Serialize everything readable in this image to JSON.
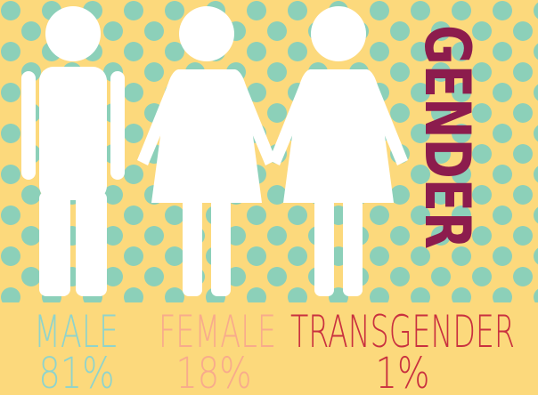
{
  "chart_data": {
    "type": "pictogram",
    "title": "GENDER",
    "categories": [
      "MALE",
      "FEMALE",
      "TRANSGENDER"
    ],
    "values": [
      81,
      18,
      1
    ],
    "value_labels": [
      "81%",
      "18%",
      "1%"
    ],
    "colors": [
      "#8fd4cc",
      "#f8ab8c",
      "#c9303f"
    ],
    "title_color": "#8c1c4d"
  }
}
